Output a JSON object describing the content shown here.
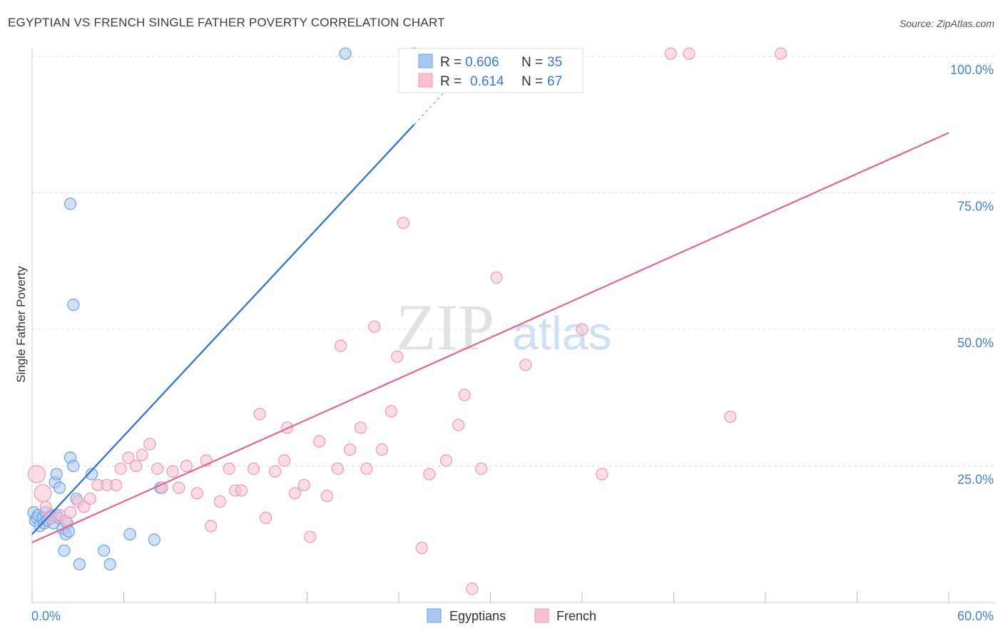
{
  "title": "EGYPTIAN VS FRENCH SINGLE FATHER POVERTY CORRELATION CHART",
  "source": "Source: ZipAtlas.com",
  "watermark": {
    "zip": "ZIP",
    "atlas": "atlas"
  },
  "legend": {
    "rows": [
      {
        "r_label": "R =",
        "r_value": "0.606",
        "n_label": "N =",
        "n_value": "35"
      },
      {
        "r_label": "R =",
        "r_value": "0.614",
        "n_label": "N =",
        "n_value": "67"
      }
    ]
  },
  "bottom_legend": [
    "Egyptians",
    "French"
  ],
  "colors": {
    "egyptians_fill": "#a9c8f0",
    "egyptians_stroke": "#6f9fe0",
    "egyptians_line": "#2a6fd6",
    "french_fill": "#f7c1d3",
    "french_stroke": "#ec98b5",
    "french_line": "#e06592",
    "tick_label": "#4a7fd0"
  },
  "chart_data": {
    "type": "scatter",
    "title": "EGYPTIAN VS FRENCH SINGLE FATHER POVERTY CORRELATION CHART",
    "xlabel": "",
    "ylabel": "Single Father Poverty",
    "xlim": [
      0,
      60
    ],
    "ylim": [
      0,
      102
    ],
    "x_tick_labels": [
      "0.0%",
      "60.0%"
    ],
    "y_ticks": [
      {
        "value": 25,
        "label": "25.0%"
      },
      {
        "value": 50,
        "label": "50.0%"
      },
      {
        "value": 75,
        "label": "75.0%"
      },
      {
        "value": 100,
        "label": "100.0%"
      }
    ],
    "series": [
      {
        "name": "Egyptians",
        "r": 0.606,
        "n": 35,
        "trend": {
          "x0": 0,
          "y0": 12.5,
          "x1": 25,
          "y1": 87.5,
          "dash_to_x": 28,
          "dash_to_y": 96.5
        },
        "points": [
          [
            0.1,
            16.5
          ],
          [
            0.2,
            15.0
          ],
          [
            0.3,
            15.5
          ],
          [
            0.4,
            16.0
          ],
          [
            0.5,
            14.0
          ],
          [
            0.7,
            15.5
          ],
          [
            0.8,
            14.5
          ],
          [
            0.9,
            16.5
          ],
          [
            1.0,
            15.0
          ],
          [
            1.2,
            15.5
          ],
          [
            1.3,
            16.0
          ],
          [
            1.4,
            14.5
          ],
          [
            1.6,
            16.0
          ],
          [
            1.7,
            15.5
          ],
          [
            1.5,
            22.0
          ],
          [
            1.6,
            23.5
          ],
          [
            1.8,
            21.0
          ],
          [
            2.0,
            13.5
          ],
          [
            2.1,
            9.5
          ],
          [
            2.2,
            12.5
          ],
          [
            2.3,
            14.5
          ],
          [
            2.4,
            13.0
          ],
          [
            2.5,
            26.5
          ],
          [
            2.7,
            25.0
          ],
          [
            2.9,
            19.0
          ],
          [
            3.1,
            7.0
          ],
          [
            3.9,
            23.5
          ],
          [
            4.7,
            9.5
          ],
          [
            5.1,
            7.0
          ],
          [
            6.4,
            12.5
          ],
          [
            8.0,
            11.5
          ],
          [
            8.4,
            21.0
          ],
          [
            2.5,
            73.0
          ],
          [
            2.7,
            54.5
          ],
          [
            20.5,
            100.5
          ]
        ]
      },
      {
        "name": "French",
        "r": 0.614,
        "n": 67,
        "trend": {
          "x0": 0,
          "y0": 11.0,
          "x1": 60,
          "y1": 86.0
        },
        "points": [
          [
            0.3,
            23.5
          ],
          [
            0.7,
            20.0
          ],
          [
            0.9,
            17.5
          ],
          [
            1.2,
            15.5
          ],
          [
            1.8,
            16.0
          ],
          [
            2.2,
            15.0
          ],
          [
            2.5,
            16.5
          ],
          [
            3.0,
            18.5
          ],
          [
            3.4,
            17.5
          ],
          [
            3.8,
            19.0
          ],
          [
            4.3,
            21.5
          ],
          [
            4.9,
            21.5
          ],
          [
            5.5,
            21.5
          ],
          [
            5.8,
            24.5
          ],
          [
            6.3,
            26.5
          ],
          [
            6.8,
            25.0
          ],
          [
            7.2,
            27.0
          ],
          [
            7.7,
            29.0
          ],
          [
            8.2,
            24.5
          ],
          [
            8.5,
            21.0
          ],
          [
            9.2,
            24.0
          ],
          [
            9.6,
            21.0
          ],
          [
            10.1,
            25.0
          ],
          [
            10.8,
            20.0
          ],
          [
            11.4,
            26.0
          ],
          [
            11.7,
            14.0
          ],
          [
            12.3,
            18.5
          ],
          [
            12.9,
            24.5
          ],
          [
            13.3,
            20.5
          ],
          [
            13.7,
            20.5
          ],
          [
            14.5,
            24.5
          ],
          [
            14.9,
            34.5
          ],
          [
            15.3,
            15.5
          ],
          [
            15.9,
            24.0
          ],
          [
            16.5,
            26.0
          ],
          [
            16.7,
            32.0
          ],
          [
            17.2,
            20.0
          ],
          [
            17.8,
            21.5
          ],
          [
            18.2,
            12.0
          ],
          [
            18.8,
            29.5
          ],
          [
            19.3,
            19.5
          ],
          [
            20.0,
            24.5
          ],
          [
            20.2,
            47.0
          ],
          [
            20.8,
            28.0
          ],
          [
            21.5,
            32.0
          ],
          [
            21.9,
            24.5
          ],
          [
            22.4,
            50.5
          ],
          [
            22.9,
            28.0
          ],
          [
            23.5,
            35.0
          ],
          [
            23.9,
            45.0
          ],
          [
            24.3,
            69.5
          ],
          [
            25.5,
            10.0
          ],
          [
            26.0,
            23.5
          ],
          [
            27.1,
            26.0
          ],
          [
            27.9,
            32.5
          ],
          [
            28.3,
            38.0
          ],
          [
            28.8,
            2.5
          ],
          [
            29.4,
            24.5
          ],
          [
            30.4,
            59.5
          ],
          [
            32.3,
            43.5
          ],
          [
            36.0,
            50.0
          ],
          [
            37.3,
            23.5
          ],
          [
            45.7,
            34.0
          ],
          [
            49.0,
            100.5
          ],
          [
            41.8,
            100.5
          ],
          [
            43.0,
            100.5
          ],
          [
            25.0,
            100.5
          ]
        ]
      }
    ]
  }
}
